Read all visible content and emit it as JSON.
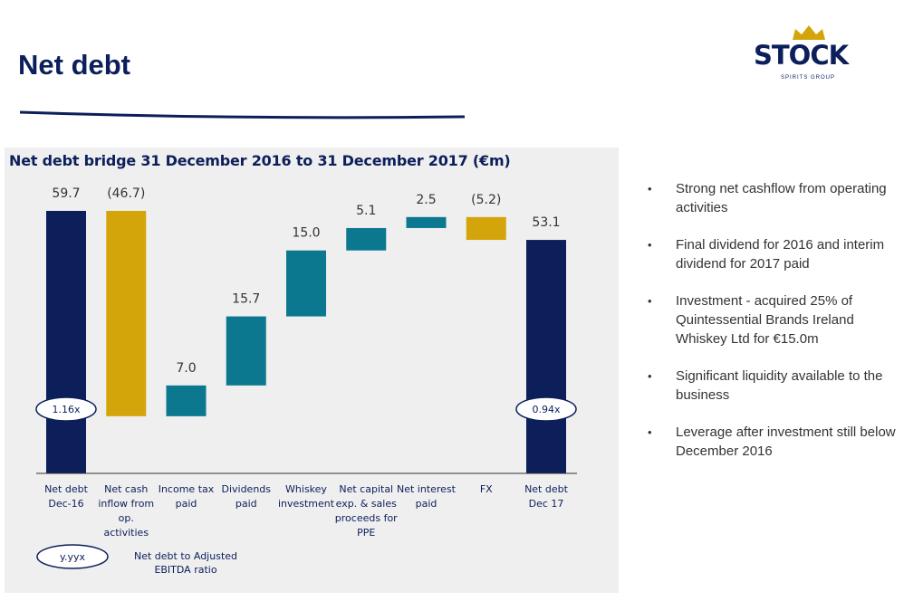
{
  "title": "Net debt",
  "logo": {
    "name": "STOCK",
    "tagline": "SPIRITS GROUP"
  },
  "chart_data": {
    "type": "waterfall",
    "title": "Net debt bridge 31 December 2016 to 31 December 2017 (€m)",
    "categories": [
      "Net debt Dec-16",
      "Net cash inflow from op. activities",
      "Income tax paid",
      "Dividends paid",
      "Whiskey investment",
      "Net capital exp. & sales proceeds for PPE",
      "Net interest paid",
      "FX",
      "Net debt Dec 17"
    ],
    "values": [
      59.7,
      -46.7,
      7.0,
      15.7,
      15.0,
      5.1,
      2.5,
      -5.2,
      53.1
    ],
    "value_labels": [
      "59.7",
      "(46.7)",
      "7.0",
      "15.7",
      "15.0",
      "5.1",
      "2.5",
      "(5.2)",
      "53.1"
    ],
    "colors": [
      "#0c1f5b",
      "#d4a50a",
      "#0b7890",
      "#0b7890",
      "#0b7890",
      "#0b7890",
      "#0b7890",
      "#d4a50a",
      "#0c1f5b"
    ],
    "annotations": [
      "1.16x",
      "0.94x"
    ],
    "legend": {
      "symbol": "y.yyx",
      "text": "Net debt to Adjusted EBITDA ratio"
    }
  },
  "bullets": [
    "Strong net cashflow from operating activities",
    "Final dividend for 2016 and interim dividend for 2017 paid",
    "Investment - acquired 25% of Quintessential Brands Ireland Whiskey Ltd for €15.0m",
    "Significant liquidity available to the business",
    "Leverage after investment still below December 2016"
  ]
}
